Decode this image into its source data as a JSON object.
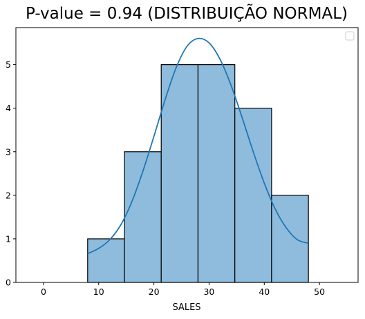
{
  "chart_data": {
    "type": "bar",
    "title": "P-value = 0.94 (DISTRIBUIÇÃO NORMAL)",
    "xlabel": "SALES",
    "ylabel": "",
    "xlim": [
      -5,
      57
    ],
    "ylim": [
      0,
      5.85
    ],
    "xticks": [
      0,
      10,
      20,
      30,
      40,
      50
    ],
    "yticks": [
      0,
      1,
      2,
      3,
      4,
      5
    ],
    "bins": [
      {
        "x0": 8.0,
        "x1": 14.67,
        "count": 1
      },
      {
        "x0": 14.67,
        "x1": 21.33,
        "count": 3
      },
      {
        "x0": 21.33,
        "x1": 28.0,
        "count": 5
      },
      {
        "x0": 28.0,
        "x1": 34.67,
        "count": 5
      },
      {
        "x0": 34.67,
        "x1": 41.33,
        "count": 4
      },
      {
        "x0": 41.33,
        "x1": 48.0,
        "count": 2
      }
    ],
    "kde": {
      "x": [
        8,
        10,
        12,
        14,
        16,
        18,
        20,
        22,
        24,
        26,
        28,
        30,
        32,
        34,
        36,
        38,
        40,
        42,
        44,
        46,
        48
      ],
      "y": [
        0.66,
        0.78,
        0.98,
        1.32,
        1.85,
        2.55,
        3.35,
        4.18,
        4.92,
        5.42,
        5.6,
        5.5,
        5.12,
        4.52,
        3.78,
        3.0,
        2.28,
        1.68,
        1.25,
        0.98,
        0.9
      ]
    },
    "legend": {
      "placement": "top-right",
      "entries": []
    },
    "grid": false,
    "colors": {
      "bar_fill": "#8fbbdc",
      "bar_edge": "#000000",
      "kde_line": "#1f77b4"
    }
  }
}
